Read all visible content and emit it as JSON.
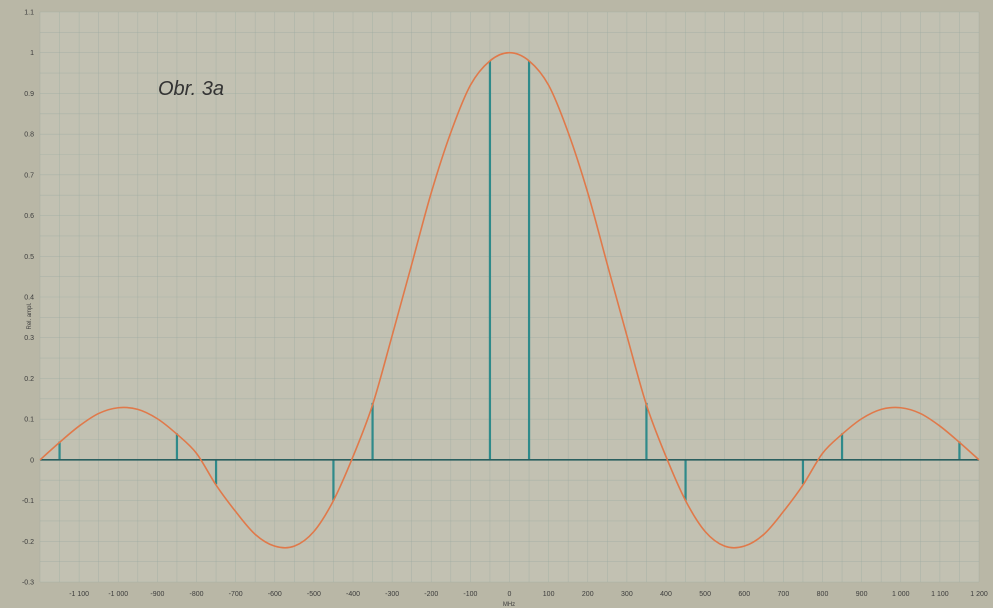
{
  "chart_data": {
    "type": "line",
    "title": "",
    "annotation": "Obr. 3a",
    "xlabel": "MHz",
    "ylabel": "Rel. ampl.",
    "xlim": [
      -1200,
      1200
    ],
    "ylim": [
      -0.3,
      1.1
    ],
    "x_ticks": [
      "-1 100",
      "-1 000",
      "-900",
      "-800",
      "-700",
      "-600",
      "-500",
      "-400",
      "-300",
      "-200",
      "-100",
      "0",
      "100",
      "200",
      "300",
      "400",
      "500",
      "600",
      "700",
      "800",
      "900",
      "1 000",
      "1 100",
      "1 200"
    ],
    "x_tick_values": [
      -1100,
      -1000,
      -900,
      -800,
      -700,
      -600,
      -500,
      -400,
      -300,
      -200,
      -100,
      0,
      100,
      200,
      300,
      400,
      500,
      600,
      700,
      800,
      900,
      1000,
      1100,
      1200
    ],
    "y_ticks": [
      "-0.3",
      "-0.2",
      "-0.1",
      "0",
      "0.1",
      "0.2",
      "0.3",
      "0.4",
      "0.5",
      "0.6",
      "0.7",
      "0.8",
      "0.9",
      "1",
      "1.1"
    ],
    "y_tick_values": [
      -0.3,
      -0.2,
      -0.1,
      0,
      0.1,
      0.2,
      0.3,
      0.4,
      0.5,
      0.6,
      0.7,
      0.8,
      0.9,
      1,
      1.1
    ],
    "grid": true,
    "colors": {
      "curve": "#e0794a",
      "stems": "#2f8a8a",
      "axis": "#2a5f5f",
      "plot_bg": "#c2c1b2"
    },
    "series": [
      {
        "type": "line",
        "x": [
          -1200,
          -1150,
          -1100,
          -1050,
          -1000,
          -950,
          -900,
          -850,
          -800,
          -750,
          -700,
          -650,
          -600,
          -550,
          -500,
          -450,
          -400,
          -350,
          -300,
          -250,
          -200,
          -150,
          -100,
          -50,
          0,
          50,
          100,
          150,
          200,
          250,
          300,
          350,
          400,
          450,
          500,
          550,
          600,
          650,
          700,
          750,
          800,
          850,
          900,
          950,
          1000,
          1050,
          1100,
          1150,
          1200
        ],
        "y": [
          0.0,
          0.043,
          0.083,
          0.114,
          0.128,
          0.124,
          0.101,
          0.063,
          0.016,
          -0.062,
          -0.127,
          -0.183,
          -0.212,
          -0.212,
          -0.176,
          -0.1,
          0.008,
          0.135,
          0.305,
          0.48,
          0.656,
          0.804,
          0.92,
          0.98,
          1.0,
          0.98,
          0.92,
          0.804,
          0.656,
          0.48,
          0.305,
          0.135,
          0.008,
          -0.1,
          -0.176,
          -0.212,
          -0.212,
          -0.183,
          -0.127,
          -0.062,
          0.016,
          0.063,
          0.101,
          0.124,
          0.128,
          0.114,
          0.083,
          0.043,
          0.0
        ]
      },
      {
        "type": "stem",
        "x": [
          -1150,
          -850,
          -750,
          -450,
          -350,
          -50,
          50,
          350,
          450,
          750,
          850,
          1150
        ],
        "y": [
          0.045,
          0.065,
          -0.06,
          -0.1,
          0.14,
          0.98,
          0.98,
          0.14,
          -0.1,
          -0.06,
          0.065,
          0.045
        ]
      }
    ]
  }
}
